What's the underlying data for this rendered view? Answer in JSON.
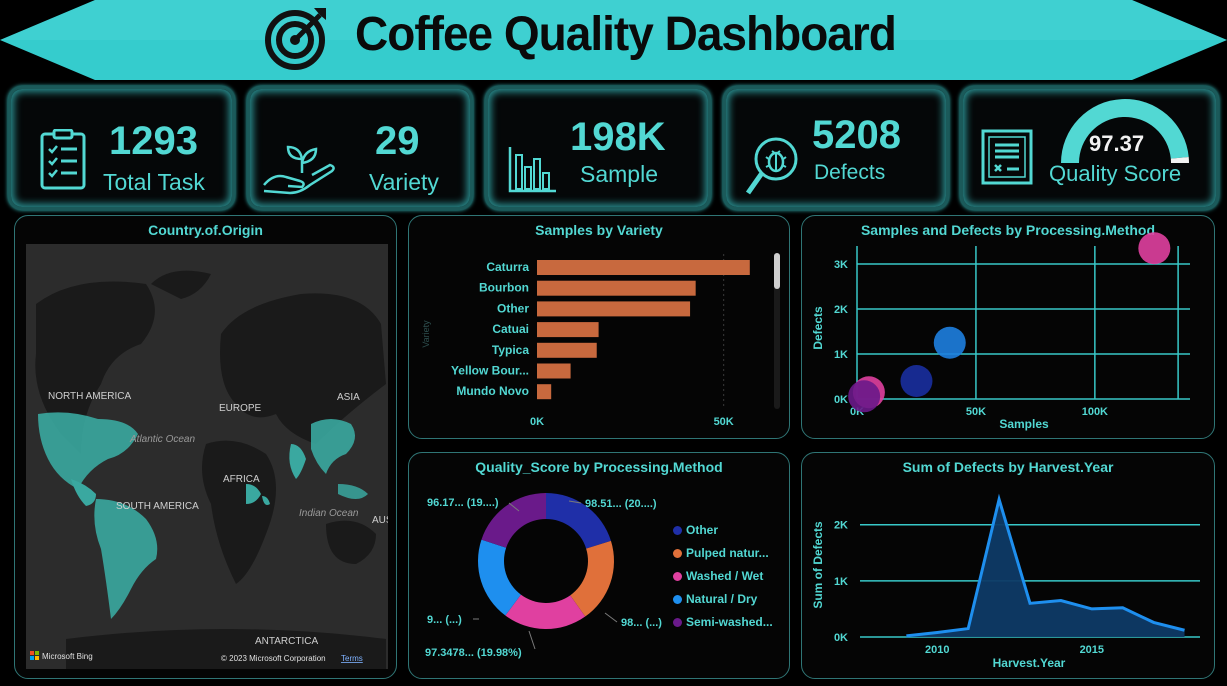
{
  "header": {
    "title": "Coffee Quality Dashboard"
  },
  "kpis": [
    {
      "value": "1293",
      "label": "Total Task",
      "icon": "checklist-icon"
    },
    {
      "value": "29",
      "label": "Variety",
      "icon": "plant-hand-icon"
    },
    {
      "value": "198K",
      "label": "Sample",
      "icon": "bar-chart-icon"
    },
    {
      "value": "5208",
      "label": "Defects",
      "icon": "bug-magnifier-icon"
    },
    {
      "value": "97.37",
      "label": "Quality Score",
      "icon": "certificate-icon",
      "gauge_fraction": 0.97
    }
  ],
  "map": {
    "title": "Country.of.Origin",
    "labels": [
      "NORTH AMERICA",
      "EUROPE",
      "ASIA",
      "AFRICA",
      "SOUTH AMERICA",
      "ANTARCTICA",
      "Atlantic Ocean",
      "Indian Ocean",
      "AUS"
    ],
    "attribution": "Microsoft Bing",
    "copyright": "© 2023 Microsoft Corporation",
    "terms": "Terms"
  },
  "chart_data": [
    {
      "type": "bar",
      "title": "Samples by Variety",
      "ylabel": "Variety",
      "categories": [
        "Caturra",
        "Bourbon",
        "Other",
        "Catuai",
        "Typica",
        "Yellow Bour...",
        "Mundo Novo"
      ],
      "values": [
        57000,
        42500,
        41000,
        16500,
        16000,
        9000,
        3800
      ],
      "xticks": [
        "0K",
        "50K"
      ],
      "xlim": [
        0,
        60000
      ],
      "color": "#c8693e"
    },
    {
      "type": "scatter",
      "title": "Samples and Defects by Processing.Method",
      "xlabel": "Samples",
      "ylabel": "Defects",
      "xticks": [
        "0K",
        "50K",
        "100K"
      ],
      "yticks": [
        "0K",
        "1K",
        "2K",
        "3K"
      ],
      "xlim": [
        0,
        140000
      ],
      "ylim": [
        0,
        3400
      ],
      "points": [
        {
          "x": 125000,
          "y": 3350,
          "color": "#e040a0"
        },
        {
          "x": 39000,
          "y": 1250,
          "color": "#1e7fe0"
        },
        {
          "x": 25000,
          "y": 400,
          "color": "#1a2fa0"
        },
        {
          "x": 5000,
          "y": 150,
          "color": "#e040a0"
        },
        {
          "x": 3000,
          "y": 60,
          "color": "#6a1a8a"
        }
      ]
    },
    {
      "type": "pie",
      "title": "Quality_Score by Processing.Method",
      "series": [
        {
          "name": "Other",
          "value": 20.22,
          "color": "#1f2fa8"
        },
        {
          "name": "Pulped natur...",
          "value": 20.0,
          "color": "#e0703a"
        },
        {
          "name": "Washed / Wet",
          "value": 19.98,
          "color": "#e040a0"
        },
        {
          "name": "Natural / Dry",
          "value": 19.9,
          "color": "#1e8fef"
        },
        {
          "name": "Semi-washed...",
          "value": 19.9,
          "color": "#6a1a8a"
        }
      ],
      "data_labels": [
        "98.51... (20....)",
        "98... (...)",
        "97.3478... (19.98%)",
        "9... (...)",
        "96.17... (19....)"
      ]
    },
    {
      "type": "area",
      "title": "Sum of Defects by Harvest.Year",
      "xlabel": "Harvest.Year",
      "ylabel": "Sum of Defects",
      "x": [
        2009,
        2010,
        2011,
        2012,
        2013,
        2014,
        2015,
        2016,
        2017,
        2018
      ],
      "values": [
        20,
        80,
        150,
        2450,
        600,
        650,
        500,
        520,
        260,
        120
      ],
      "xticks": [
        "2010",
        "2015"
      ],
      "yticks": [
        "0K",
        "1K",
        "2K"
      ],
      "xlim": [
        2007.5,
        2018.5
      ],
      "ylim": [
        0,
        2600
      ]
    }
  ]
}
